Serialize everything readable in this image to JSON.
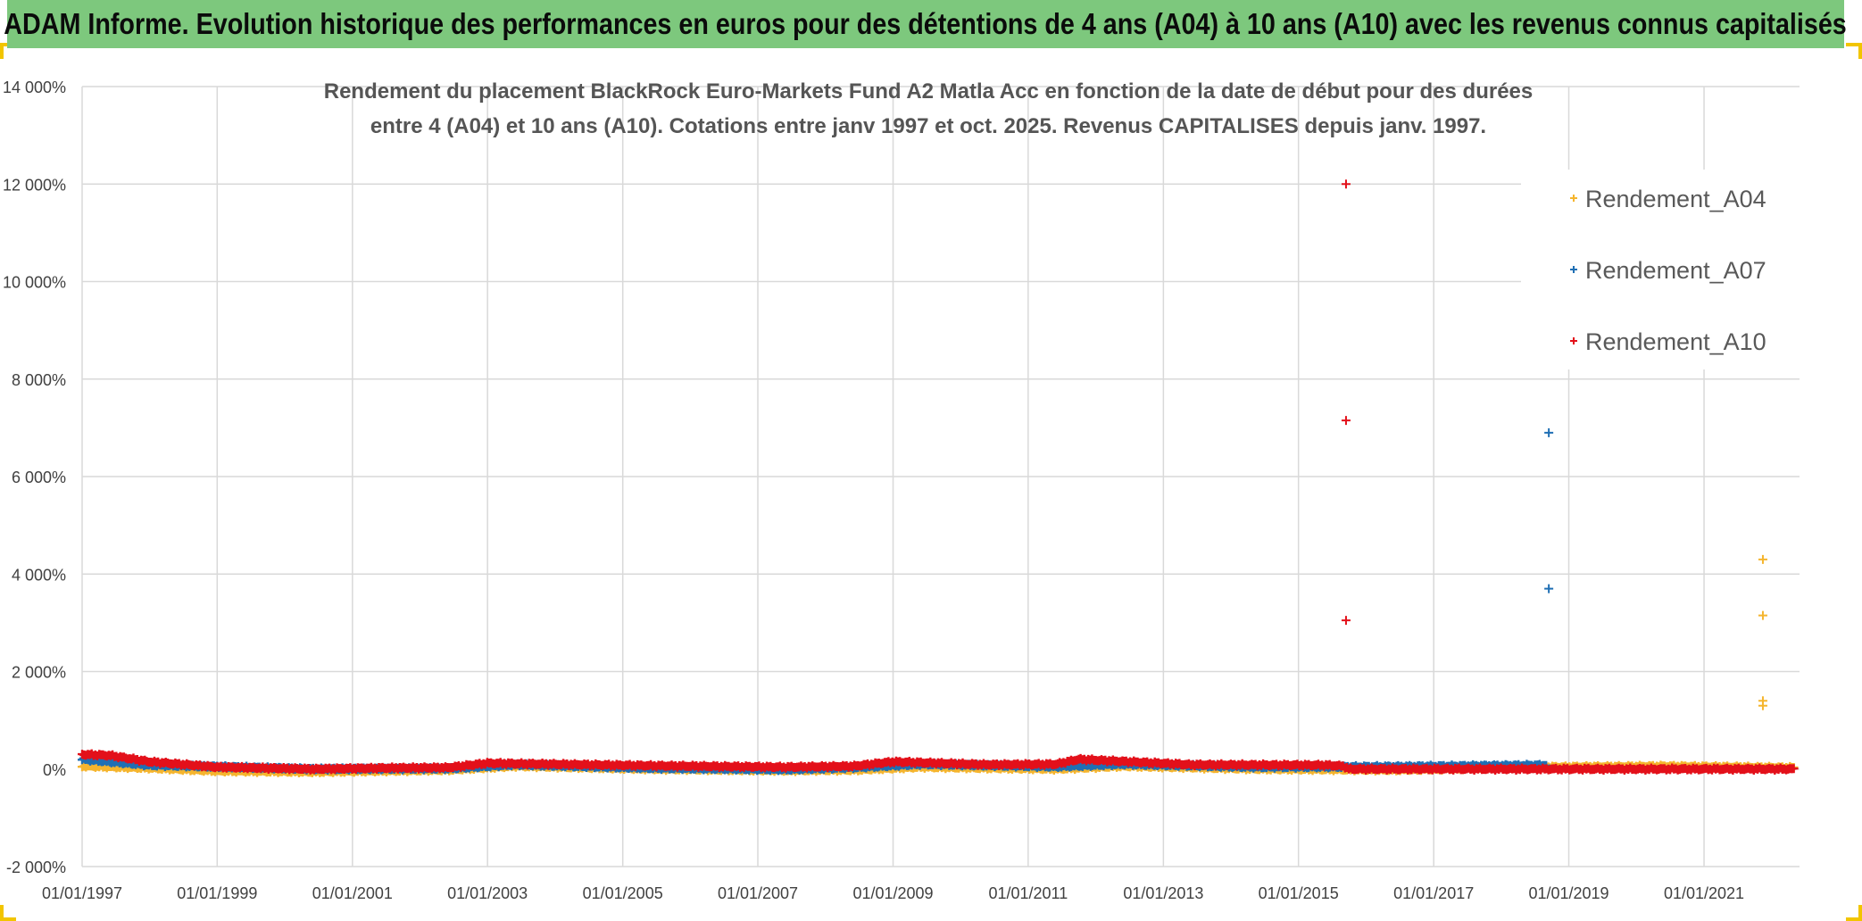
{
  "banner": {
    "title": "ADAM Informe. Evolution historique des performances en euros pour des détentions de 4 ans (A04) à 10 ans (A10) avec les revenus connus capitalisés"
  },
  "colors": {
    "banner_bg": "#7dc87d",
    "A04": "#f5b52e",
    "A07": "#1f6fb4",
    "A10": "#e3101a",
    "grid": "#d9d9d9",
    "corner": "#f2c500"
  },
  "chart_data": {
    "type": "scatter",
    "title_lines": [
      "Rendement du placement BlackRock Euro-Markets Fund A2 Matla Acc en fonction de la date de début pour des durées",
      "entre 4 (A04) et 10 ans (A10). Cotations entre janv 1997 et oct. 2025. Revenus CAPITALISES depuis janv. 1997."
    ],
    "xlabel": "",
    "ylabel": "",
    "xlim": [
      "1997-01-01",
      "2022-06-01"
    ],
    "ylim": [
      -2000,
      14000
    ],
    "x_ticks": [
      "01/01/1997",
      "01/01/1999",
      "01/01/2001",
      "01/01/2003",
      "01/01/2005",
      "01/01/2007",
      "01/01/2009",
      "01/01/2011",
      "01/01/2013",
      "01/01/2015",
      "01/01/2017",
      "01/01/2019",
      "01/01/2021"
    ],
    "y_ticks": [
      -2000,
      0,
      2000,
      4000,
      6000,
      8000,
      10000,
      12000,
      14000
    ],
    "y_tick_labels": [
      "-2 000%",
      "0%",
      "2 000%",
      "4 000%",
      "6 000%",
      "8 000%",
      "10 000%",
      "12 000%",
      "14 000%"
    ],
    "grid": true,
    "legend_position": "top-right",
    "marker": "+",
    "series": [
      {
        "name": "Rendement_A04",
        "color_key": "A04",
        "range": [
          "1997-01-01",
          "2022-05-01"
        ],
        "profile": [
          [
            "1997-01-01",
            60
          ],
          [
            "1998-01-01",
            20
          ],
          [
            "1999-01-01",
            -40
          ],
          [
            "2000-06-01",
            -60
          ],
          [
            "2002-06-01",
            -20
          ],
          [
            "2003-06-01",
            60
          ],
          [
            "2005-06-01",
            0
          ],
          [
            "2007-06-01",
            -30
          ],
          [
            "2008-06-01",
            -20
          ],
          [
            "2009-06-01",
            40
          ],
          [
            "2011-06-01",
            0
          ],
          [
            "2012-06-01",
            60
          ],
          [
            "2014-06-01",
            0
          ],
          [
            "2016-06-01",
            -20
          ],
          [
            "2018-06-01",
            40
          ],
          [
            "2020-06-01",
            60
          ],
          [
            "2022-05-01",
            30
          ]
        ],
        "outliers": [
          [
            "2021-11-15",
            4300
          ],
          [
            "2021-11-15",
            3150
          ],
          [
            "2021-11-15",
            1400
          ],
          [
            "2021-11-15",
            1300
          ]
        ]
      },
      {
        "name": "Rendement_A07",
        "color_key": "A07",
        "range": [
          "1997-01-01",
          "2018-09-01"
        ],
        "profile": [
          [
            "1997-01-01",
            200
          ],
          [
            "1998-01-01",
            80
          ],
          [
            "1999-01-01",
            50
          ],
          [
            "2000-06-01",
            0
          ],
          [
            "2002-06-01",
            10
          ],
          [
            "2003-06-01",
            90
          ],
          [
            "2005-06-01",
            20
          ],
          [
            "2007-06-01",
            -10
          ],
          [
            "2008-06-01",
            30
          ],
          [
            "2009-06-01",
            100
          ],
          [
            "2011-06-01",
            50
          ],
          [
            "2012-06-01",
            100
          ],
          [
            "2014-06-01",
            40
          ],
          [
            "2016-06-01",
            50
          ],
          [
            "2018-09-01",
            80
          ]
        ],
        "outliers": [
          [
            "2018-09-15",
            6900
          ],
          [
            "2018-09-15",
            3700
          ]
        ]
      },
      {
        "name": "Rendement_A10",
        "color_key": "A10",
        "range": [
          "1997-01-01",
          "2022-05-01"
        ],
        "profile": [
          [
            "1997-01-01",
            300
          ],
          [
            "1997-06-01",
            280
          ],
          [
            "1998-01-01",
            150
          ],
          [
            "1999-01-01",
            40
          ],
          [
            "2000-06-01",
            0
          ],
          [
            "2001-06-01",
            20
          ],
          [
            "2002-06-01",
            30
          ],
          [
            "2003-01-01",
            120
          ],
          [
            "2005-06-01",
            70
          ],
          [
            "2007-06-01",
            40
          ],
          [
            "2008-06-01",
            60
          ],
          [
            "2009-01-01",
            150
          ],
          [
            "2010-06-01",
            90
          ],
          [
            "2011-06-01",
            100
          ],
          [
            "2011-10-01",
            200
          ],
          [
            "2013-06-01",
            90
          ],
          [
            "2015-06-01",
            80
          ],
          [
            "2015-09-01",
            60
          ],
          [
            "2015-10-01",
            0
          ],
          [
            "2022-05-01",
            0
          ]
        ],
        "outliers": [
          [
            "2015-09-15",
            12000
          ],
          [
            "2015-09-15",
            7150
          ],
          [
            "2015-09-15",
            3050
          ]
        ]
      }
    ]
  }
}
